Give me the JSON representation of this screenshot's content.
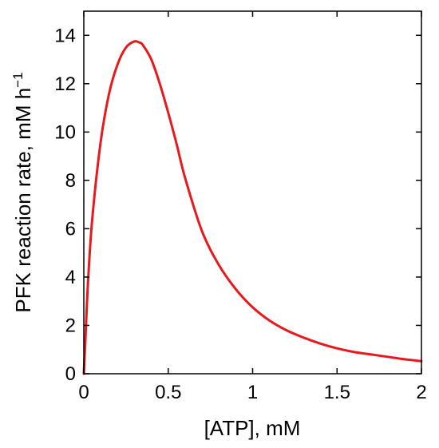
{
  "chart_data": {
    "type": "line",
    "title": "",
    "xlabel": "[ATP], mM",
    "ylabel_main": "PFK reaction rate, mM h",
    "ylabel_sup": "−1",
    "xlim": [
      0,
      2
    ],
    "ylim": [
      0,
      15
    ],
    "grid": false,
    "xticks": [
      {
        "value": 0,
        "label": "0"
      },
      {
        "value": 0.5,
        "label": "0.5"
      },
      {
        "value": 1,
        "label": "1"
      },
      {
        "value": 1.5,
        "label": "1.5"
      },
      {
        "value": 2,
        "label": "2"
      }
    ],
    "yticks": [
      {
        "value": 0,
        "label": "0"
      },
      {
        "value": 2,
        "label": "2"
      },
      {
        "value": 4,
        "label": "4"
      },
      {
        "value": 6,
        "label": "6"
      },
      {
        "value": 8,
        "label": "8"
      },
      {
        "value": 10,
        "label": "10"
      },
      {
        "value": 12,
        "label": "12"
      },
      {
        "value": 14,
        "label": "14"
      }
    ],
    "series": [
      {
        "color": "#e8191c",
        "x": [
          0,
          0.01,
          0.025,
          0.05,
          0.1,
          0.15,
          0.2,
          0.25,
          0.3,
          0.33,
          0.35,
          0.4,
          0.45,
          0.5,
          0.55,
          0.6,
          0.7,
          0.8,
          0.9,
          1.0,
          1.1,
          1.2,
          1.3,
          1.4,
          1.5,
          1.6,
          1.7,
          1.8,
          1.9,
          2.0
        ],
        "y": [
          0,
          1.5,
          3.8,
          6.4,
          9.6,
          11.6,
          12.8,
          13.5,
          13.75,
          13.7,
          13.6,
          13.0,
          12.0,
          10.8,
          9.5,
          8.1,
          5.9,
          4.5,
          3.5,
          2.75,
          2.2,
          1.8,
          1.5,
          1.25,
          1.05,
          0.9,
          0.8,
          0.7,
          0.6,
          0.52
        ]
      }
    ]
  }
}
